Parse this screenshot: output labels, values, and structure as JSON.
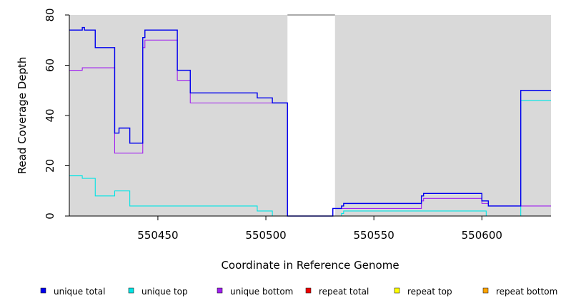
{
  "chart_data": {
    "type": "line",
    "title": "",
    "xlabel": "Coordinate in Reference Genome",
    "ylabel": "Read Coverage Depth",
    "xlim": [
      550409,
      550632
    ],
    "ylim": [
      0,
      80
    ],
    "x_ticks": [
      550450,
      550500,
      550550,
      550600
    ],
    "y_ticks": [
      0,
      20,
      40,
      60,
      80
    ],
    "shaded_regions": [
      {
        "x0": 550409,
        "x1": 550510
      },
      {
        "x0": 550532,
        "x1": 550632
      }
    ],
    "shade_color": "#d9d9d9",
    "legend_position": "bottom",
    "series": [
      {
        "name": "unique total",
        "color": "#0000ee",
        "points": [
          [
            550409,
            74
          ],
          [
            550415,
            74
          ],
          [
            550415,
            75
          ],
          [
            550416,
            75
          ],
          [
            550416,
            74
          ],
          [
            550421,
            74
          ],
          [
            550421,
            67
          ],
          [
            550430,
            67
          ],
          [
            550430,
            33
          ],
          [
            550432,
            33
          ],
          [
            550432,
            35
          ],
          [
            550437,
            35
          ],
          [
            550437,
            29
          ],
          [
            550443,
            29
          ],
          [
            550443,
            71
          ],
          [
            550444,
            71
          ],
          [
            550444,
            74
          ],
          [
            550459,
            74
          ],
          [
            550459,
            58
          ],
          [
            550465,
            58
          ],
          [
            550465,
            49
          ],
          [
            550496,
            49
          ],
          [
            550496,
            47
          ],
          [
            550503,
            47
          ],
          [
            550503,
            45
          ],
          [
            550510,
            45
          ],
          [
            550510,
            0
          ],
          [
            550531,
            0
          ],
          [
            550531,
            3
          ],
          [
            550535,
            3
          ],
          [
            550535,
            4
          ],
          [
            550536,
            4
          ],
          [
            550536,
            5
          ],
          [
            550572,
            5
          ],
          [
            550572,
            8
          ],
          [
            550573,
            8
          ],
          [
            550573,
            9
          ],
          [
            550600,
            9
          ],
          [
            550600,
            6
          ],
          [
            550603,
            6
          ],
          [
            550603,
            4
          ],
          [
            550618,
            4
          ],
          [
            550618,
            50
          ],
          [
            550632,
            50
          ]
        ]
      },
      {
        "name": "unique top",
        "color": "#00e5e5",
        "points": [
          [
            550409,
            16
          ],
          [
            550415,
            16
          ],
          [
            550415,
            15
          ],
          [
            550421,
            15
          ],
          [
            550421,
            8
          ],
          [
            550430,
            8
          ],
          [
            550430,
            10
          ],
          [
            550437,
            10
          ],
          [
            550437,
            4
          ],
          [
            550496,
            4
          ],
          [
            550496,
            2
          ],
          [
            550503,
            2
          ],
          [
            550503,
            0
          ],
          [
            550535,
            0
          ],
          [
            550535,
            1
          ],
          [
            550536,
            1
          ],
          [
            550536,
            2
          ],
          [
            550602,
            2
          ],
          [
            550602,
            0
          ],
          [
            550618,
            0
          ],
          [
            550618,
            46
          ],
          [
            550632,
            46
          ]
        ]
      },
      {
        "name": "unique bottom",
        "color": "#a020f0",
        "points": [
          [
            550409,
            58
          ],
          [
            550415,
            58
          ],
          [
            550415,
            59
          ],
          [
            550430,
            59
          ],
          [
            550430,
            25
          ],
          [
            550443,
            25
          ],
          [
            550443,
            67
          ],
          [
            550444,
            67
          ],
          [
            550444,
            70
          ],
          [
            550459,
            70
          ],
          [
            550459,
            54
          ],
          [
            550465,
            54
          ],
          [
            550465,
            45
          ],
          [
            550510,
            45
          ],
          [
            550510,
            0
          ],
          [
            550531,
            0
          ],
          [
            550531,
            3
          ],
          [
            550572,
            3
          ],
          [
            550572,
            6
          ],
          [
            550573,
            6
          ],
          [
            550573,
            7
          ],
          [
            550600,
            7
          ],
          [
            550600,
            5
          ],
          [
            550603,
            5
          ],
          [
            550603,
            4
          ],
          [
            550632,
            4
          ]
        ]
      },
      {
        "name": "repeat total",
        "color": "#ee0000",
        "points": [
          [
            550409,
            0
          ],
          [
            550632,
            0
          ]
        ]
      },
      {
        "name": "repeat top",
        "color": "#ffff00",
        "points": [
          [
            550409,
            0
          ],
          [
            550632,
            0
          ]
        ]
      },
      {
        "name": "repeat bottom",
        "color": "#ffa500",
        "points": [
          [
            550409,
            0
          ],
          [
            550632,
            0
          ]
        ]
      }
    ]
  }
}
